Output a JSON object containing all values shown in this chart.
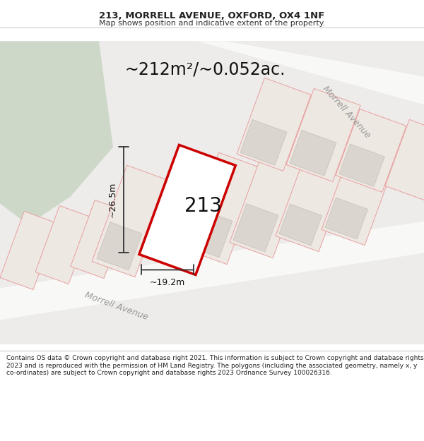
{
  "title": "213, MORRELL AVENUE, OXFORD, OX4 1NF",
  "subtitle": "Map shows position and indicative extent of the property.",
  "area_text": "~212m²/~0.052ac.",
  "property_number": "213",
  "width_label": "~19.2m",
  "height_label": "~26.5m",
  "footer_text": "Contains OS data © Crown copyright and database right 2021. This information is subject to Crown copyright and database rights 2023 and is reproduced with the permission of HM Land Registry. The polygons (including the associated geometry, namely x, y co-ordinates) are subject to Crown copyright and database rights 2023 Ordnance Survey 100026316.",
  "map_bg": "#edecea",
  "road_color": "#f8f8f6",
  "plot_outline_color": "#e8a0a0",
  "highlight_color": "#cc0000",
  "building_color": "#dbd5cf",
  "green_area_color": "#cdd8c8",
  "title_fontsize": 9.5,
  "subtitle_fontsize": 8,
  "area_fontsize": 17,
  "number_fontsize": 20,
  "label_fontsize": 9,
  "road_label_fontsize": 9,
  "footer_fontsize": 6.5
}
